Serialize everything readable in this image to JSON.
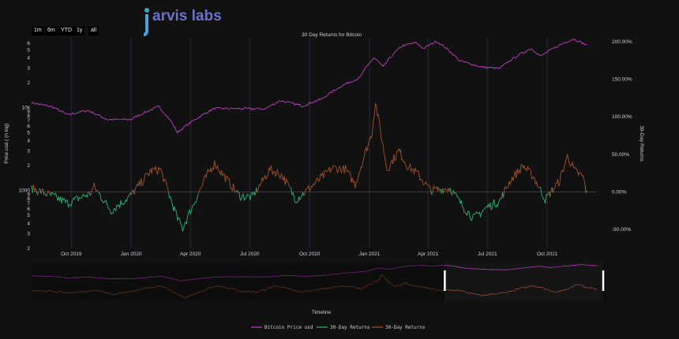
{
  "logo": {
    "text": "jarvis labs"
  },
  "range_buttons": [
    "1m",
    "6m",
    "YTD",
    "1y",
    "all"
  ],
  "colors": {
    "background": "#111111",
    "price": "#c23cc6",
    "positive": "#2bb673",
    "negative": "#a0522d",
    "grid": "#262a3a",
    "zero_line": "#34395a",
    "selector_handle": "#ffffff"
  },
  "chart_data": {
    "type": "line",
    "title": "30 Day Returns for Bitcoin",
    "xlabel": "Timeline",
    "ylabel_left": "Price usd ( (n log)",
    "ylabel_right": "30-Day Returns",
    "x_range": [
      "2019-08-01",
      "2021-12-15"
    ],
    "x_tick_labels": [
      "Oct 2019",
      "Jan 2020",
      "Apr 2020",
      "Jul 2020",
      "Oct 2020",
      "Jan 2021",
      "Apr 2021",
      "Jul 2021",
      "Oct 2021"
    ],
    "y_left": {
      "scale": "log",
      "range": [
        200,
        70000
      ],
      "major_tick_labels": [
        "1000",
        "10k"
      ],
      "minor_tick_labels": [
        "2",
        "3",
        "4",
        "5",
        "6",
        "7",
        "8",
        "9",
        "2",
        "3",
        "4",
        "5",
        "6",
        "7",
        "8",
        "9",
        "2",
        "3",
        "4",
        "5",
        "6"
      ]
    },
    "y_right": {
      "range": [
        -0.75,
        2.05
      ],
      "tick_labels": [
        "-50.00%",
        "0.00%",
        "50.00%",
        "100.00%",
        "150.00%",
        "200.00%"
      ]
    },
    "series": [
      {
        "name": "Bitcoin Price usd",
        "axis": "left",
        "color": "#c23cc6",
        "points": [
          [
            "2019-08-01",
            11500
          ],
          [
            "2019-09-01",
            10300
          ],
          [
            "2019-09-25",
            8200
          ],
          [
            "2019-10-26",
            9300
          ],
          [
            "2019-11-25",
            7200
          ],
          [
            "2019-12-31",
            7200
          ],
          [
            "2020-02-12",
            10300
          ],
          [
            "2020-03-12",
            5000
          ],
          [
            "2020-04-01",
            6600
          ],
          [
            "2020-05-08",
            9800
          ],
          [
            "2020-07-25",
            9700
          ],
          [
            "2020-08-17",
            12200
          ],
          [
            "2020-09-20",
            10500
          ],
          [
            "2020-10-21",
            12900
          ],
          [
            "2020-11-24",
            19200
          ],
          [
            "2020-12-17",
            23000
          ],
          [
            "2021-01-08",
            40000
          ],
          [
            "2021-01-22",
            31000
          ],
          [
            "2021-02-20",
            56000
          ],
          [
            "2021-03-13",
            61000
          ],
          [
            "2021-03-25",
            52000
          ],
          [
            "2021-04-14",
            63500
          ],
          [
            "2021-05-19",
            37000
          ],
          [
            "2021-06-22",
            31000
          ],
          [
            "2021-07-20",
            29800
          ],
          [
            "2021-09-06",
            52000
          ],
          [
            "2021-09-21",
            42000
          ],
          [
            "2021-11-10",
            68000
          ],
          [
            "2021-12-01",
            57000
          ]
        ]
      },
      {
        "name": "30-Day Returns",
        "axis": "right",
        "color": "#2bb673",
        "note": "negative segments"
      },
      {
        "name": "30-Day Returns",
        "axis": "right",
        "color": "#a0522d",
        "note": "positive segments",
        "points": [
          [
            "2019-08-01",
            0.05
          ],
          [
            "2019-09-01",
            -0.05
          ],
          [
            "2019-09-25",
            -0.15
          ],
          [
            "2019-10-30",
            -0.02
          ],
          [
            "2019-11-05",
            0.07
          ],
          [
            "2019-12-01",
            -0.25
          ],
          [
            "2019-12-31",
            -0.05
          ],
          [
            "2020-01-31",
            0.28
          ],
          [
            "2020-02-15",
            0.3
          ],
          [
            "2020-03-12",
            -0.35
          ],
          [
            "2020-03-20",
            -0.48
          ],
          [
            "2020-04-25",
            0.2
          ],
          [
            "2020-05-08",
            0.38
          ],
          [
            "2020-06-15",
            -0.05
          ],
          [
            "2020-07-05",
            -0.07
          ],
          [
            "2020-08-01",
            0.3
          ],
          [
            "2020-08-20",
            0.22
          ],
          [
            "2020-09-10",
            -0.1
          ],
          [
            "2020-10-01",
            0.05
          ],
          [
            "2020-11-05",
            0.32
          ],
          [
            "2020-11-25",
            0.3
          ],
          [
            "2020-12-10",
            0.1
          ],
          [
            "2021-01-05",
            0.8
          ],
          [
            "2021-01-10",
            1.2
          ],
          [
            "2021-01-28",
            0.3
          ],
          [
            "2021-02-15",
            0.55
          ],
          [
            "2021-02-28",
            0.35
          ],
          [
            "2021-03-15",
            0.25
          ],
          [
            "2021-04-05",
            0.02
          ],
          [
            "2021-05-05",
            0.05
          ],
          [
            "2021-05-25",
            -0.2
          ],
          [
            "2021-06-10",
            -0.35
          ],
          [
            "2021-07-01",
            -0.2
          ],
          [
            "2021-07-20",
            -0.12
          ],
          [
            "2021-08-05",
            0.15
          ],
          [
            "2021-08-25",
            0.35
          ],
          [
            "2021-09-10",
            0.2
          ],
          [
            "2021-09-28",
            -0.1
          ],
          [
            "2021-10-20",
            0.15
          ],
          [
            "2021-11-01",
            0.48
          ],
          [
            "2021-11-12",
            0.28
          ],
          [
            "2021-11-25",
            0.2
          ],
          [
            "2021-12-01",
            -0.03
          ]
        ]
      }
    ],
    "range_selector": {
      "visible_from": "2019-08-01",
      "visible_to": "2021-12-15",
      "handles_at": [
        "2021-04-15",
        "2021-12-10"
      ]
    }
  }
}
